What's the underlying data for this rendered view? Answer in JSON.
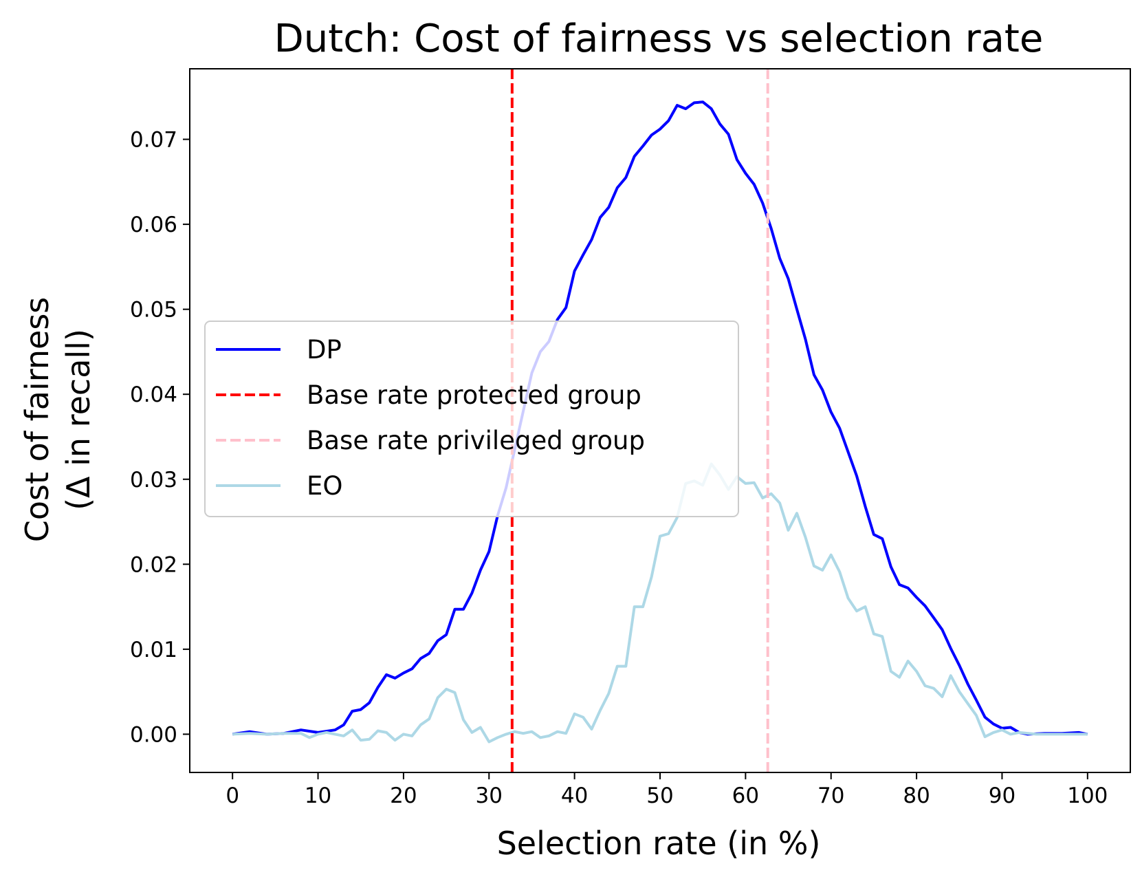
{
  "chart_data": {
    "type": "line",
    "title": "Dutch: Cost of fairness vs selection rate",
    "xlabel": "Selection rate (in %)",
    "ylabel_lines": [
      "Cost of fairness",
      "(Δ in recall)"
    ],
    "xlim": [
      -5,
      105
    ],
    "ylim": [
      -0.0045,
      0.0783
    ],
    "xticks": [
      0,
      10,
      20,
      30,
      40,
      50,
      60,
      70,
      80,
      90,
      100
    ],
    "xtick_labels": [
      "0",
      "10",
      "20",
      "30",
      "40",
      "50",
      "60",
      "70",
      "80",
      "90",
      "100"
    ],
    "yticks": [
      0.0,
      0.01,
      0.02,
      0.03,
      0.04,
      0.05,
      0.06,
      0.07
    ],
    "ytick_labels": [
      "0.00",
      "0.01",
      "0.02",
      "0.03",
      "0.04",
      "0.05",
      "0.06",
      "0.07"
    ],
    "grid": false,
    "legend_position": "center-left",
    "series": [
      {
        "name": "DP",
        "color": "#0000ff",
        "style": "solid",
        "x": [
          0,
          2,
          4,
          6,
          8,
          10,
          12,
          13,
          14,
          15,
          16,
          17,
          18,
          19,
          20,
          21,
          22,
          23,
          24,
          25,
          26,
          27,
          28,
          29,
          30,
          31,
          32,
          33,
          34,
          35,
          36,
          37,
          38,
          39,
          40,
          41,
          42,
          43,
          44,
          45,
          46,
          47,
          48,
          49,
          50,
          51,
          52,
          53,
          54,
          55,
          56,
          57,
          58,
          59,
          60,
          61,
          62,
          63,
          64,
          65,
          66,
          67,
          68,
          69,
          70,
          71,
          72,
          73,
          74,
          75,
          76,
          77,
          78,
          79,
          80,
          81,
          82,
          83,
          84,
          85,
          86,
          87,
          88,
          89,
          90,
          91,
          92,
          93,
          95,
          97,
          99,
          100
        ],
        "y": [
          0.0,
          0.0003,
          0.0,
          0.0001,
          0.0005,
          0.0002,
          0.0005,
          0.0011,
          0.0027,
          0.0029,
          0.0037,
          0.0055,
          0.007,
          0.0066,
          0.0072,
          0.0077,
          0.0089,
          0.0095,
          0.011,
          0.0117,
          0.0147,
          0.0147,
          0.0166,
          0.0193,
          0.0215,
          0.0257,
          0.029,
          0.0335,
          0.038,
          0.0425,
          0.045,
          0.0462,
          0.0488,
          0.0502,
          0.0545,
          0.0564,
          0.0582,
          0.0608,
          0.062,
          0.0643,
          0.0655,
          0.068,
          0.0692,
          0.0705,
          0.0712,
          0.0722,
          0.074,
          0.0736,
          0.0743,
          0.0744,
          0.0736,
          0.0718,
          0.0706,
          0.0676,
          0.066,
          0.0647,
          0.0625,
          0.0595,
          0.056,
          0.0536,
          0.05,
          0.0465,
          0.0423,
          0.0405,
          0.0379,
          0.036,
          0.0332,
          0.0304,
          0.0268,
          0.0235,
          0.023,
          0.0197,
          0.0176,
          0.0172,
          0.0161,
          0.0151,
          0.0137,
          0.0123,
          0.0101,
          0.0081,
          0.0059,
          0.004,
          0.002,
          0.0012,
          0.0007,
          0.0008,
          0.0002,
          0.0,
          0.0001,
          0.0001,
          0.0002,
          0.0
        ]
      },
      {
        "name": "Base rate protected group",
        "color": "#ff0000",
        "style": "dashed",
        "x_value": 32.7
      },
      {
        "name": "Base rate privileged group",
        "color": "#ffc0cb",
        "style": "dashed",
        "x_value": 62.6
      },
      {
        "name": "EO",
        "color": "#add8e6",
        "style": "solid",
        "x": [
          0,
          2,
          4,
          6,
          8,
          9,
          10,
          11,
          12,
          13,
          14,
          15,
          16,
          17,
          18,
          19,
          20,
          21,
          22,
          23,
          24,
          25,
          26,
          27,
          28,
          29,
          30,
          31,
          32,
          33,
          34,
          35,
          36,
          37,
          38,
          39,
          40,
          41,
          42,
          43,
          44,
          45,
          46,
          47,
          48,
          49,
          50,
          51,
          52,
          53,
          54,
          55,
          56,
          57,
          58,
          59,
          60,
          61,
          62,
          63,
          64,
          65,
          66,
          67,
          68,
          69,
          70,
          71,
          72,
          73,
          74,
          75,
          76,
          77,
          78,
          79,
          80,
          81,
          82,
          83,
          84,
          85,
          86,
          87,
          88,
          89,
          90,
          91,
          92,
          94,
          96,
          98,
          100
        ],
        "y": [
          0.0,
          0.0001,
          0.0,
          0.0001,
          0.0001,
          -0.0004,
          0.0,
          0.0002,
          0.0,
          -0.0002,
          0.0005,
          -0.0007,
          -0.0006,
          0.0004,
          0.0002,
          -0.0007,
          0.0,
          -0.0002,
          0.0011,
          0.0018,
          0.0043,
          0.0053,
          0.0049,
          0.0017,
          0.0002,
          0.0008,
          -0.0009,
          -0.0004,
          0.0,
          0.0003,
          0.0001,
          0.0003,
          -0.0004,
          -0.0002,
          0.0003,
          0.0001,
          0.0024,
          0.002,
          0.0006,
          0.0028,
          0.0048,
          0.008,
          0.008,
          0.015,
          0.015,
          0.0185,
          0.0233,
          0.0236,
          0.0255,
          0.0295,
          0.0298,
          0.0293,
          0.0318,
          0.0305,
          0.0288,
          0.0303,
          0.0295,
          0.0296,
          0.0278,
          0.0283,
          0.0272,
          0.024,
          0.026,
          0.0232,
          0.0198,
          0.0193,
          0.0211,
          0.0191,
          0.016,
          0.0145,
          0.015,
          0.0118,
          0.0115,
          0.0074,
          0.0067,
          0.0086,
          0.0074,
          0.0057,
          0.0054,
          0.0044,
          0.0069,
          0.005,
          0.0036,
          0.0022,
          -0.0003,
          0.0002,
          0.0005,
          0.0,
          0.0002,
          0.0,
          0.0,
          0.0,
          0.0
        ]
      }
    ]
  }
}
